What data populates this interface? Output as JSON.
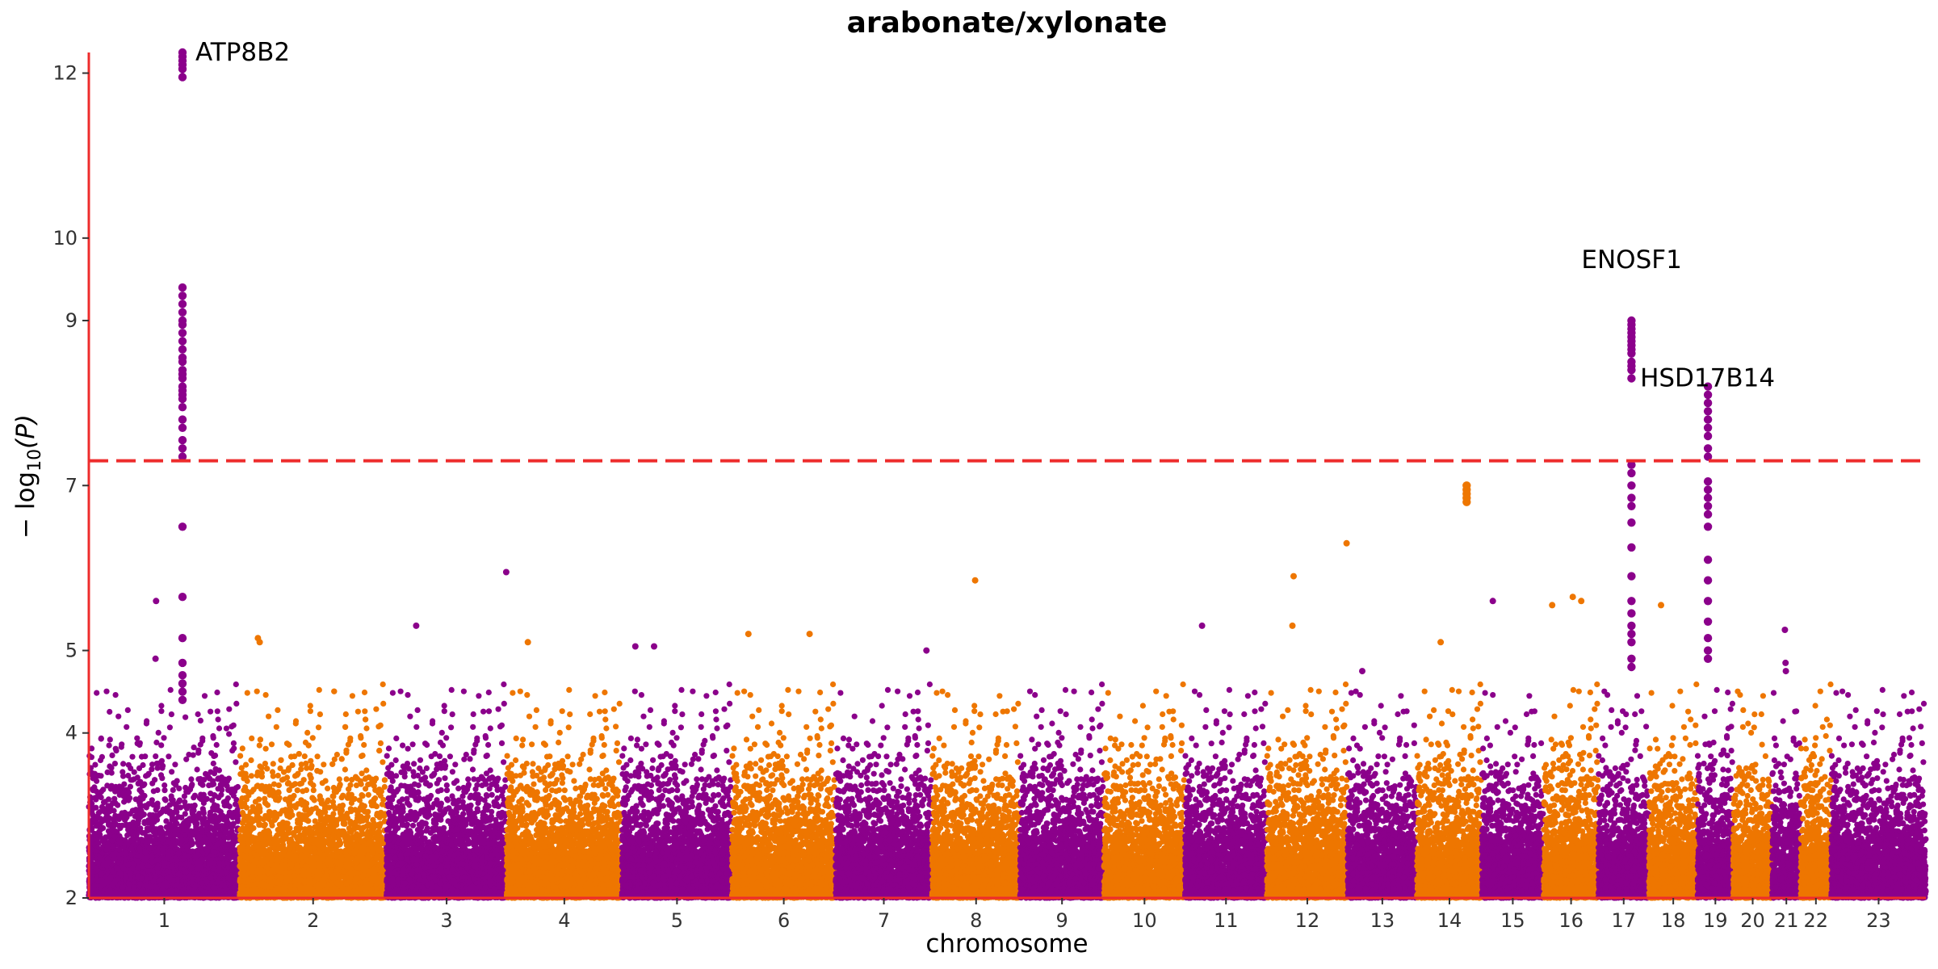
{
  "chart_data": {
    "type": "scatter",
    "title": "arabonate/xylonate",
    "xlabel": "chromosome",
    "ylabel_math": "−log10(P)",
    "ylabel_parts": {
      "prefix": "− log",
      "subscript": "10",
      "suffix": "(P)"
    },
    "ylim": [
      2,
      12.25
    ],
    "y_ticks": [
      2,
      4,
      5,
      7,
      9,
      10,
      12
    ],
    "grid": false,
    "legend": "none",
    "significance_threshold": 7.3,
    "colors": {
      "odd": "#8b008b",
      "even": "#ee7600",
      "axis": "#ee2c2c",
      "threshold": "#ee2c2c"
    },
    "chromosomes": [
      {
        "label": "1",
        "cumStart": 0,
        "cumEnd": 248.96
      },
      {
        "label": "2",
        "cumStart": 248.96,
        "cumEnd": 491.15
      },
      {
        "label": "3",
        "cumStart": 491.15,
        "cumEnd": 689.45
      },
      {
        "label": "4",
        "cumStart": 689.45,
        "cumEnd": 879.66
      },
      {
        "label": "5",
        "cumStart": 879.66,
        "cumEnd": 1061.2
      },
      {
        "label": "6",
        "cumStart": 1061.2,
        "cumEnd": 1232.01
      },
      {
        "label": "7",
        "cumStart": 1232.01,
        "cumEnd": 1391.36
      },
      {
        "label": "8",
        "cumStart": 1391.36,
        "cumEnd": 1536.5
      },
      {
        "label": "9",
        "cumStart": 1536.5,
        "cumEnd": 1674.89
      },
      {
        "label": "10",
        "cumStart": 1674.89,
        "cumEnd": 1808.69
      },
      {
        "label": "11",
        "cumStart": 1808.69,
        "cumEnd": 1943.78
      },
      {
        "label": "12",
        "cumStart": 1943.78,
        "cumEnd": 2077.05
      },
      {
        "label": "13",
        "cumStart": 2077.05,
        "cumEnd": 2191.41
      },
      {
        "label": "14",
        "cumStart": 2191.41,
        "cumEnd": 2298.45
      },
      {
        "label": "15",
        "cumStart": 2298.45,
        "cumEnd": 2400.44
      },
      {
        "label": "16",
        "cumStart": 2400.44,
        "cumEnd": 2490.78
      },
      {
        "label": "17",
        "cumStart": 2490.78,
        "cumEnd": 2574.04
      },
      {
        "label": "18",
        "cumStart": 2574.04,
        "cumEnd": 2654.41
      },
      {
        "label": "19",
        "cumStart": 2654.41,
        "cumEnd": 2713.03
      },
      {
        "label": "20",
        "cumStart": 2713.03,
        "cumEnd": 2777.47
      },
      {
        "label": "21",
        "cumStart": 2777.47,
        "cumEnd": 2824.18
      },
      {
        "label": "22",
        "cumStart": 2824.18,
        "cumEnd": 2875.0
      },
      {
        "label": "23",
        "cumStart": 2875.0,
        "cumEnd": 3031.04
      }
    ],
    "peaks": [
      {
        "chr": "1",
        "pos": 154.5,
        "ys": [
          12.25,
          12.2,
          12.15,
          12.1,
          12.05,
          11.95,
          9.4,
          9.3,
          9.2,
          9.1,
          9.0,
          8.95,
          8.85,
          8.75,
          8.65,
          8.55,
          8.5,
          8.4,
          8.35,
          8.3,
          8.2,
          8.15,
          8.1,
          8.05,
          7.95,
          7.8,
          7.7,
          7.55,
          7.45,
          7.35,
          6.5,
          5.65,
          5.15,
          4.85,
          4.7,
          4.6,
          4.5,
          4.4
        ]
      },
      {
        "chr": "17",
        "pos": 54.5,
        "ys": [
          9.0,
          8.95,
          8.9,
          8.85,
          8.8,
          8.75,
          8.7,
          8.65,
          8.6,
          8.5,
          8.45,
          8.4,
          8.3,
          7.25,
          7.15,
          7.0,
          6.85,
          6.75,
          6.55,
          6.25,
          5.9,
          5.6,
          5.45,
          5.3,
          5.2,
          5.1,
          4.9,
          4.8
        ]
      },
      {
        "chr": "19",
        "pos": 17.0,
        "ys": [
          8.2,
          8.1,
          8.0,
          7.9,
          7.8,
          7.7,
          7.6,
          7.45,
          7.35,
          7.05,
          6.95,
          6.85,
          6.75,
          6.65,
          6.5,
          6.1,
          5.85,
          5.6,
          5.35,
          5.15,
          5.0,
          4.9
        ]
      },
      {
        "chr": "14",
        "pos": 82.0,
        "ys": [
          7.0,
          6.95,
          6.9,
          6.85,
          6.8
        ]
      }
    ],
    "singletons": [
      {
        "chr": "1",
        "pos": 111.0,
        "y": 5.6
      },
      {
        "chr": "1",
        "pos": 110.0,
        "y": 4.9
      },
      {
        "chr": "3",
        "pos": 49.0,
        "y": 5.3
      },
      {
        "chr": "3",
        "pos": 197.5,
        "y": 5.95
      },
      {
        "chr": "8",
        "pos": 71.0,
        "y": 5.85
      },
      {
        "chr": "12",
        "pos": 44.0,
        "y": 5.9
      },
      {
        "chr": "12",
        "pos": 42.0,
        "y": 5.3
      },
      {
        "chr": "12",
        "pos": 131.5,
        "y": 6.3
      },
      {
        "chr": "14",
        "pos": 39.0,
        "y": 5.1
      },
      {
        "chr": "15",
        "pos": 18.0,
        "y": 5.6
      },
      {
        "chr": "16",
        "pos": 14.0,
        "y": 5.55
      },
      {
        "chr": "16",
        "pos": 48.0,
        "y": 5.65
      },
      {
        "chr": "16",
        "pos": 62.0,
        "y": 5.6
      },
      {
        "chr": "18",
        "pos": 20.0,
        "y": 5.55
      },
      {
        "chr": "21",
        "pos": 21.0,
        "y": 5.25
      },
      {
        "chr": "21",
        "pos": 22.0,
        "y": 4.85
      },
      {
        "chr": "21",
        "pos": 22.5,
        "y": 4.75
      },
      {
        "chr": "2",
        "pos": 30.0,
        "y": 5.15
      },
      {
        "chr": "2",
        "pos": 33.0,
        "y": 5.1
      },
      {
        "chr": "4",
        "pos": 35.0,
        "y": 5.1
      },
      {
        "chr": "6",
        "pos": 27.0,
        "y": 5.2
      },
      {
        "chr": "6",
        "pos": 128.0,
        "y": 5.2
      },
      {
        "chr": "5",
        "pos": 22.0,
        "y": 5.05
      },
      {
        "chr": "5",
        "pos": 53.0,
        "y": 5.05
      },
      {
        "chr": "11",
        "pos": 28.0,
        "y": 5.3
      },
      {
        "chr": "7",
        "pos": 150.0,
        "y": 5.0
      },
      {
        "chr": "13",
        "pos": 24.0,
        "y": 4.75
      }
    ],
    "annotations": [
      {
        "text": "ATP8B2",
        "chr": "1",
        "pos": 154.5,
        "y": 12.25
      },
      {
        "text": "ENOSF1",
        "chr": "17",
        "pos": 54.5,
        "y": 9.85
      },
      {
        "text": "HSD17B14",
        "chr": "19",
        "pos": 17.0,
        "y": 8.3
      }
    ]
  }
}
